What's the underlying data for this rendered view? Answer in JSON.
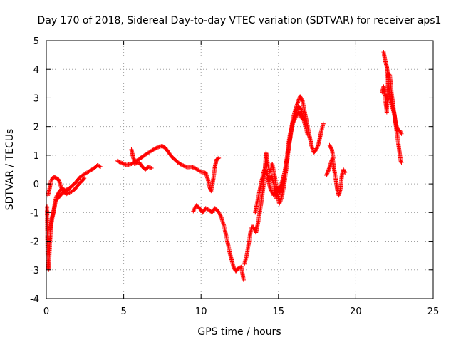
{
  "chart_data": {
    "type": "scatter",
    "title": "Day 170 of 2018, Sidereal Day-to-day VTEC variation (SDTVAR) for receiver aps1",
    "xlabel": "GPS time / hours",
    "ylabel": "SDTVAR / TECUs",
    "xlim": [
      0,
      25
    ],
    "ylim": [
      -4,
      5
    ],
    "xticks": [
      "0",
      "5",
      "10",
      "15",
      "20",
      "25"
    ],
    "yticks": [
      "-4",
      "-3",
      "-2",
      "-1",
      "0",
      "1",
      "2",
      "3",
      "4",
      "5"
    ],
    "grid": true,
    "legend": "none",
    "marker": "plus",
    "color": "#ff0000",
    "series": [
      {
        "segments": [
          [
            [
              0.05,
              -0.8
            ],
            [
              0.1,
              -2.9
            ],
            [
              0.15,
              -3.0
            ],
            [
              0.2,
              -2.4
            ],
            [
              0.25,
              -1.9
            ],
            [
              0.3,
              -1.5
            ],
            [
              0.35,
              -1.2
            ],
            [
              0.45,
              -1.0
            ],
            [
              0.55,
              -0.7
            ],
            [
              0.65,
              -0.45
            ],
            [
              0.8,
              -0.3
            ],
            [
              1.0,
              -0.15
            ],
            [
              1.3,
              -0.25
            ],
            [
              1.6,
              -0.1
            ],
            [
              1.9,
              0.05
            ],
            [
              2.2,
              0.25
            ],
            [
              2.5,
              0.35
            ],
            [
              2.8,
              0.45
            ],
            [
              3.1,
              0.55
            ],
            [
              3.3,
              0.65
            ],
            [
              3.5,
              0.6
            ]
          ],
          [
            [
              0.1,
              -0.4
            ],
            [
              0.2,
              -0.2
            ],
            [
              0.3,
              0.1
            ],
            [
              0.4,
              0.2
            ],
            [
              0.5,
              0.25
            ],
            [
              0.65,
              0.2
            ],
            [
              0.8,
              0.15
            ],
            [
              0.95,
              -0.1
            ],
            [
              1.1,
              -0.25
            ],
            [
              1.3,
              -0.35
            ],
            [
              1.5,
              -0.3
            ],
            [
              1.7,
              -0.25
            ],
            [
              1.9,
              -0.15
            ],
            [
              2.1,
              0.0
            ],
            [
              2.3,
              0.1
            ],
            [
              2.45,
              0.2
            ]
          ],
          [
            [
              0.25,
              -1.6
            ],
            [
              0.35,
              -1.3
            ],
            [
              0.5,
              -0.9
            ],
            [
              0.6,
              -0.6
            ],
            [
              0.75,
              -0.5
            ],
            [
              0.9,
              -0.4
            ],
            [
              1.1,
              -0.3
            ],
            [
              1.3,
              -0.2
            ],
            [
              1.5,
              -0.15
            ]
          ],
          [
            [
              4.6,
              0.8
            ],
            [
              4.9,
              0.72
            ],
            [
              5.2,
              0.66
            ],
            [
              5.5,
              0.7
            ],
            [
              5.8,
              0.8
            ],
            [
              6.1,
              0.9
            ],
            [
              6.4,
              1.02
            ],
            [
              6.7,
              1.12
            ],
            [
              7.0,
              1.22
            ],
            [
              7.3,
              1.3
            ],
            [
              7.5,
              1.32
            ],
            [
              7.7,
              1.25
            ],
            [
              7.9,
              1.1
            ],
            [
              8.1,
              0.95
            ],
            [
              8.3,
              0.85
            ],
            [
              8.5,
              0.75
            ],
            [
              8.8,
              0.65
            ],
            [
              9.1,
              0.58
            ],
            [
              9.4,
              0.6
            ],
            [
              9.7,
              0.52
            ],
            [
              10.0,
              0.42
            ],
            [
              10.3,
              0.38
            ],
            [
              10.45,
              0.15
            ],
            [
              10.55,
              -0.1
            ],
            [
              10.65,
              -0.25
            ],
            [
              10.8,
              0.2
            ],
            [
              10.9,
              0.6
            ],
            [
              11.0,
              0.85
            ],
            [
              11.15,
              0.9
            ]
          ],
          [
            [
              5.7,
              0.7
            ],
            [
              6.0,
              0.75
            ],
            [
              6.2,
              0.6
            ],
            [
              6.4,
              0.5
            ],
            [
              6.6,
              0.6
            ],
            [
              6.8,
              0.55
            ]
          ],
          [
            [
              5.5,
              1.2
            ],
            [
              5.6,
              0.95
            ],
            [
              5.7,
              0.78
            ]
          ],
          [
            [
              9.5,
              -0.95
            ],
            [
              9.7,
              -0.75
            ],
            [
              9.9,
              -0.85
            ],
            [
              10.1,
              -1.0
            ],
            [
              10.3,
              -0.85
            ],
            [
              10.5,
              -0.9
            ],
            [
              10.7,
              -1.0
            ],
            [
              10.9,
              -0.85
            ],
            [
              11.1,
              -0.95
            ],
            [
              11.3,
              -1.15
            ],
            [
              11.5,
              -1.5
            ],
            [
              11.7,
              -2.0
            ],
            [
              11.9,
              -2.5
            ],
            [
              12.1,
              -2.9
            ],
            [
              12.25,
              -3.05
            ],
            [
              12.4,
              -2.95
            ],
            [
              12.6,
              -2.9
            ],
            [
              12.75,
              -3.35
            ]
          ],
          [
            [
              12.8,
              -2.8
            ],
            [
              12.95,
              -2.5
            ],
            [
              13.1,
              -2.0
            ],
            [
              13.25,
              -1.5
            ],
            [
              13.4,
              -1.5
            ],
            [
              13.55,
              -1.7
            ],
            [
              13.7,
              -1.3
            ],
            [
              13.85,
              -0.8
            ],
            [
              14.0,
              -0.2
            ],
            [
              14.1,
              0.3
            ],
            [
              14.2,
              1.1
            ],
            [
              14.3,
              0.7
            ],
            [
              14.45,
              0.4
            ],
            [
              14.6,
              0.7
            ],
            [
              14.75,
              0.3
            ],
            [
              14.9,
              -0.2
            ],
            [
              15.05,
              -0.7
            ],
            [
              15.2,
              -0.5
            ],
            [
              15.35,
              -0.1
            ],
            [
              15.5,
              0.5
            ],
            [
              15.65,
              1.2
            ],
            [
              15.8,
              1.8
            ],
            [
              15.95,
              2.3
            ],
            [
              16.1,
              2.6
            ],
            [
              16.25,
              2.85
            ],
            [
              16.4,
              3.05
            ],
            [
              16.55,
              2.9
            ],
            [
              16.7,
              2.5
            ],
            [
              16.85,
              2.1
            ],
            [
              17.0,
              1.7
            ],
            [
              17.15,
              1.3
            ],
            [
              17.3,
              1.1
            ],
            [
              17.45,
              1.2
            ],
            [
              17.6,
              1.4
            ],
            [
              17.75,
              1.8
            ],
            [
              17.9,
              2.1
            ]
          ],
          [
            [
              13.5,
              -1.0
            ],
            [
              13.65,
              -0.6
            ],
            [
              13.8,
              -0.2
            ],
            [
              13.95,
              0.2
            ],
            [
              14.1,
              0.5
            ],
            [
              14.25,
              0.4
            ],
            [
              14.4,
              0.1
            ],
            [
              14.55,
              0.3
            ],
            [
              14.7,
              0.0
            ],
            [
              14.85,
              -0.5
            ],
            [
              15.0,
              -0.2
            ],
            [
              15.2,
              0.0
            ],
            [
              15.4,
              0.4
            ],
            [
              15.55,
              0.9
            ],
            [
              15.7,
              1.4
            ],
            [
              15.85,
              1.9
            ],
            [
              16.0,
              2.3
            ],
            [
              16.15,
              2.5
            ],
            [
              16.3,
              2.7
            ],
            [
              16.45,
              2.6
            ],
            [
              16.6,
              2.3
            ],
            [
              16.75,
              2.0
            ],
            [
              16.9,
              1.7
            ]
          ],
          [
            [
              14.3,
              0.2
            ],
            [
              14.5,
              -0.2
            ],
            [
              14.7,
              -0.4
            ],
            [
              14.9,
              -0.15
            ],
            [
              15.1,
              -0.3
            ],
            [
              15.3,
              0.1
            ],
            [
              15.5,
              0.7
            ],
            [
              15.7,
              1.6
            ],
            [
              15.9,
              2.1
            ],
            [
              16.1,
              2.3
            ],
            [
              16.3,
              2.5
            ],
            [
              16.5,
              2.3
            ],
            [
              16.7,
              2.2
            ]
          ],
          [
            [
              18.1,
              0.3
            ],
            [
              18.25,
              0.5
            ],
            [
              18.4,
              0.75
            ],
            [
              18.5,
              0.9
            ],
            [
              18.6,
              0.5
            ],
            [
              18.7,
              0.2
            ],
            [
              18.8,
              -0.2
            ],
            [
              18.9,
              -0.4
            ],
            [
              19.0,
              -0.2
            ],
            [
              19.1,
              0.3
            ],
            [
              19.2,
              0.5
            ],
            [
              19.3,
              0.4
            ]
          ],
          [
            [
              18.3,
              1.35
            ],
            [
              18.45,
              1.2
            ],
            [
              18.55,
              0.9
            ]
          ],
          [
            [
              21.8,
              4.6
            ],
            [
              21.9,
              4.3
            ],
            [
              22.0,
              4.1
            ],
            [
              22.05,
              3.9
            ],
            [
              22.1,
              3.5
            ],
            [
              22.2,
              3.0
            ],
            [
              22.35,
              2.7
            ],
            [
              22.5,
              2.4
            ],
            [
              22.6,
              2.0
            ],
            [
              22.7,
              1.6
            ],
            [
              22.8,
              1.2
            ],
            [
              22.9,
              0.8
            ],
            [
              22.95,
              0.75
            ]
          ],
          [
            [
              21.7,
              3.2
            ],
            [
              21.8,
              3.4
            ],
            [
              21.9,
              3.0
            ],
            [
              22.0,
              2.5
            ],
            [
              22.1,
              3.85
            ],
            [
              22.2,
              3.8
            ],
            [
              22.3,
              3.2
            ],
            [
              22.4,
              2.8
            ],
            [
              22.55,
              2.2
            ],
            [
              22.7,
              1.9
            ],
            [
              22.85,
              1.85
            ],
            [
              22.95,
              1.75
            ]
          ]
        ]
      }
    ]
  }
}
